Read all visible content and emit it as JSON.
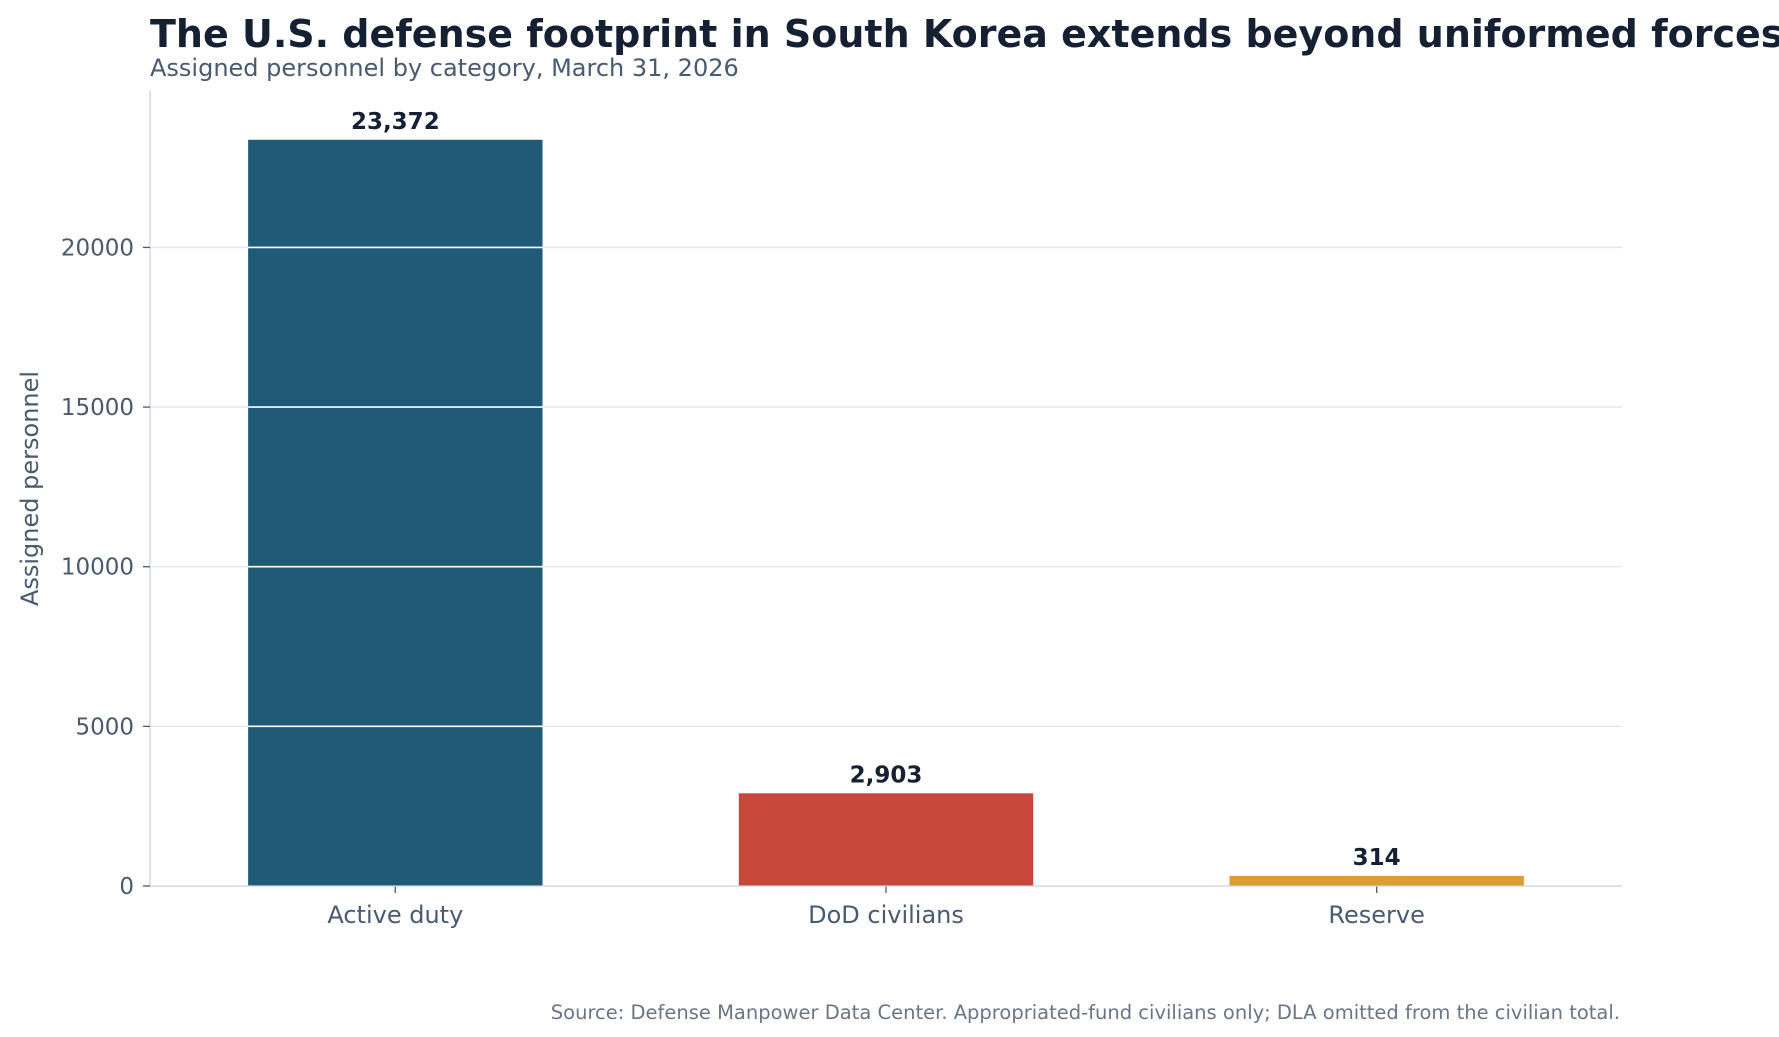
{
  "chart_data": {
    "type": "bar",
    "title": "The U.S. defense footprint in South Korea extends beyond uniformed forces",
    "subtitle": "Assigned personnel by category, March 31, 2026",
    "categories": [
      "Active duty",
      "DoD civilians",
      "Reserve"
    ],
    "values": [
      23372,
      2903,
      314
    ],
    "value_labels": [
      "23,372",
      "2,903",
      "314"
    ],
    "colors": [
      "#1f5b77",
      "#c8473c",
      "#dc9d32"
    ],
    "xlabel": "",
    "ylabel": "Assigned personnel",
    "ylim": [
      0,
      24900
    ],
    "yticks": [
      0,
      5000,
      10000,
      15000,
      20000
    ],
    "ytick_labels": [
      "0",
      "5000",
      "10000",
      "15000",
      "20000"
    ],
    "grid": true,
    "source": "Source: Defense Manpower Data Center. Appropriated-fund civilians only; DLA omitted from the civilian total."
  }
}
